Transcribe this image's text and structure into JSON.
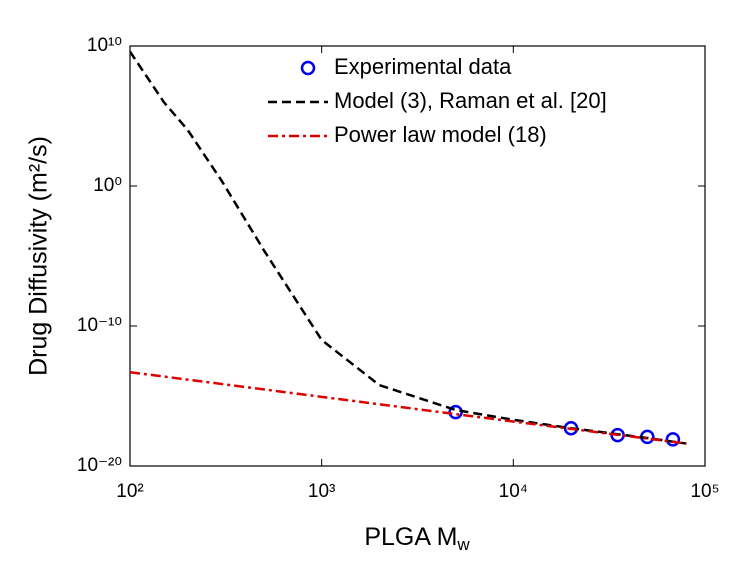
{
  "chart_data": {
    "type": "line",
    "xlabel": "PLGA M",
    "xlabel_subscript": "w",
    "ylabel": "Drug Diffusivity (m²/s)",
    "xscale": "log",
    "yscale": "log",
    "xlim": [
      100,
      100000
    ],
    "ylim": [
      1e-20,
      10000000000.0
    ],
    "xticks": [
      {
        "value": 100,
        "label": "10²"
      },
      {
        "value": 1000,
        "label": "10³"
      },
      {
        "value": 10000,
        "label": "10⁴"
      },
      {
        "value": 100000,
        "label": "10⁵"
      }
    ],
    "yticks": [
      {
        "value": 1e-20,
        "label": "10⁻²⁰"
      },
      {
        "value": 1e-10,
        "label": "10⁻¹⁰"
      },
      {
        "value": 1,
        "label": "10⁰"
      },
      {
        "value": 10000000000.0,
        "label": "10¹⁰"
      }
    ],
    "legend": "top-right",
    "series": [
      {
        "name": "Experimental data",
        "color": "#0000ee",
        "style": "markers",
        "x": [
          5000,
          20000,
          35000,
          50000,
          68000
        ],
        "values": [
          7e-17,
          5e-18,
          1.6e-18,
          1.2e-18,
          8e-19
        ]
      },
      {
        "name": "Model (3), Raman et al. [20]",
        "color": "#000000",
        "style": "dashed",
        "x": [
          100,
          150,
          200,
          300,
          500,
          1000,
          2000,
          5000,
          10000,
          20000,
          50000,
          80000
        ],
        "values": [
          4000000000.0,
          1000000.0,
          10000.0,
          2.5,
          2.5e-05,
          1e-11,
          6e-15,
          1e-16,
          2e-17,
          5e-18,
          1e-18,
          4e-19
        ]
      },
      {
        "name": "Power law model (18)",
        "color": "#dd0000",
        "style": "dashdot",
        "x": [
          100,
          1000,
          10000,
          80000
        ],
        "values": [
          5e-14,
          8.7e-16,
          1.5e-17,
          4e-19
        ]
      }
    ]
  }
}
